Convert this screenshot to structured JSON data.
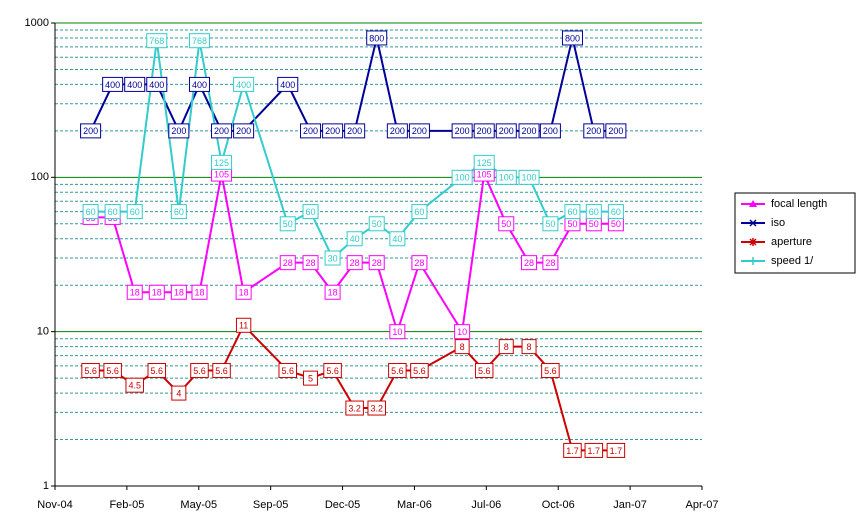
{
  "chart_data": {
    "type": "line",
    "x": [
      38342,
      38373,
      38404,
      38435,
      38466,
      38495,
      38526,
      38557,
      38619,
      38651,
      38682,
      38713,
      38744,
      38773,
      38804,
      38864,
      38895,
      38926,
      38958,
      38988,
      39019,
      39049,
      39080
    ],
    "series": [
      {
        "name": "focal length",
        "color": "#ff00ff",
        "marker": "triangle",
        "values": [
          55,
          55,
          18,
          18,
          18,
          18,
          105,
          18,
          28,
          28,
          18,
          28,
          28,
          10,
          28,
          10,
          105,
          50,
          28,
          28,
          50,
          50,
          50
        ]
      },
      {
        "name": "iso",
        "color": "#000099",
        "marker": "x",
        "values": [
          200,
          400,
          400,
          400,
          200,
          400,
          200,
          200,
          400,
          200,
          200,
          200,
          800,
          200,
          200,
          200,
          200,
          200,
          200,
          200,
          800,
          200,
          200
        ]
      },
      {
        "name": "aperture",
        "color": "#cc0000",
        "marker": "star",
        "values": [
          5.6,
          5.6,
          4.5,
          5.6,
          4,
          5.6,
          5.6,
          11,
          5.6,
          5,
          5.6,
          3.2,
          3.2,
          5.6,
          5.6,
          8,
          5.6,
          8,
          8,
          5.6,
          1.7,
          1.7,
          1.7
        ]
      },
      {
        "name": "speed 1/",
        "color": "#33cccc",
        "marker": "plus",
        "values": [
          60,
          60,
          60,
          768,
          60,
          768,
          125,
          400,
          50,
          60,
          30,
          40,
          50,
          40,
          60,
          100,
          125,
          100,
          100,
          50,
          60,
          60,
          60
        ]
      }
    ],
    "xlim": [
      38292,
      39201
    ],
    "xticks": [
      {
        "value": 38292,
        "label": "Nov-04"
      },
      {
        "value": 38393,
        "label": "Feb-05"
      },
      {
        "value": 38494,
        "label": "May-05"
      },
      {
        "value": 38595,
        "label": "Sep-05"
      },
      {
        "value": 38696,
        "label": "Dec-05"
      },
      {
        "value": 38797,
        "label": "Mar-06"
      },
      {
        "value": 38898,
        "label": "Jul-06"
      },
      {
        "value": 38999,
        "label": "Oct-06"
      },
      {
        "value": 39100,
        "label": "Jan-07"
      },
      {
        "value": 39201,
        "label": "Apr-07"
      }
    ],
    "ylim": [
      1,
      1000
    ],
    "yticks": [
      1,
      10,
      100,
      1000
    ],
    "log_scale": true,
    "grid": true,
    "grid_color": "#008000",
    "minor_grid": true,
    "minor_grid_color": "#339999",
    "legend_position": "right",
    "data_labels": true
  }
}
